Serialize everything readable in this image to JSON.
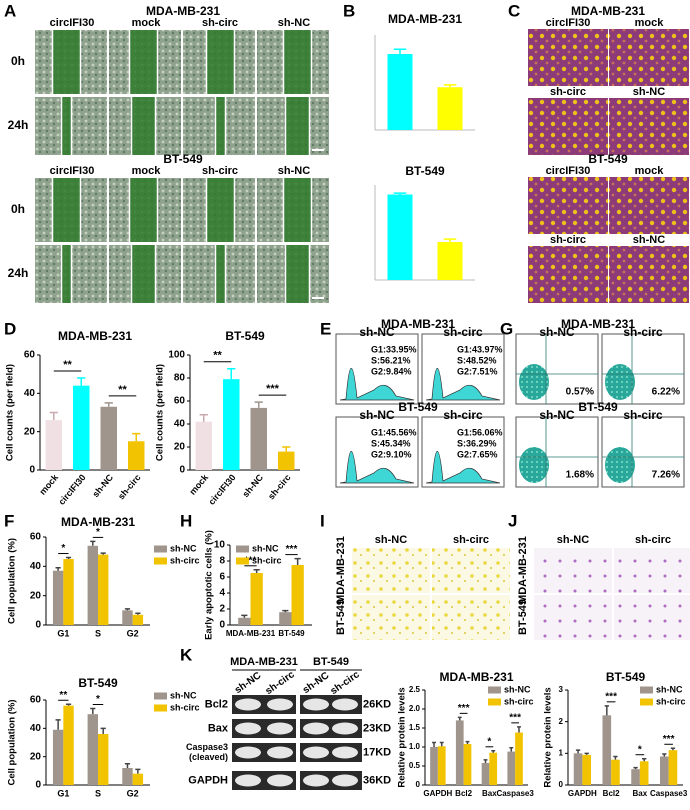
{
  "panel_labels": [
    "A",
    "B",
    "C",
    "D",
    "E",
    "G",
    "F",
    "H",
    "I",
    "J",
    "K"
  ],
  "panel_a": {
    "groups": [
      {
        "title": "MDA-MB-231",
        "columns": [
          "circIFI30",
          "mock",
          "sh-circ",
          "sh-NC"
        ],
        "rows": [
          "0h",
          "24h"
        ]
      },
      {
        "title": "BT-549",
        "columns": [
          "circIFI30",
          "mock",
          "sh-circ",
          "sh-NC"
        ],
        "rows": [
          "0h",
          "24h"
        ]
      }
    ]
  },
  "panel_c": {
    "groups": [
      {
        "title": "MDA-MB-231",
        "labels": [
          "circIFI30",
          "mock",
          "sh-circ",
          "sh-NC"
        ]
      },
      {
        "title": "BT-549",
        "labels": [
          "circIFI30",
          "mock",
          "sh-circ",
          "sh-NC"
        ]
      }
    ]
  },
  "panel_e": {
    "groups": [
      {
        "title": "MDA-MB-231",
        "plots": [
          {
            "label": "sh-NC",
            "stats": [
              "G1:33.95%",
              "S:56.21%",
              "G2:9.84%"
            ]
          },
          {
            "label": "sh-circ",
            "stats": [
              "G1:43.97%",
              "S:48.52%",
              "G2:7.51%"
            ]
          }
        ]
      },
      {
        "title": "BT-549",
        "plots": [
          {
            "label": "sh-NC",
            "stats": [
              "G1:45.56%",
              "S:45.34%",
              "G2:9.10%"
            ]
          },
          {
            "label": "sh-circ",
            "stats": [
              "G1:56.06%",
              "S:36.29%",
              "G2:7.65%"
            ]
          }
        ]
      }
    ]
  },
  "panel_g": {
    "groups": [
      {
        "title": "MDA-MB-231",
        "plots": [
          {
            "label": "sh-NC",
            "value": "0.57%"
          },
          {
            "label": "sh-circ",
            "value": "6.22%"
          }
        ]
      },
      {
        "title": "BT-549",
        "plots": [
          {
            "label": "sh-NC",
            "value": "1.68%"
          },
          {
            "label": "sh-circ",
            "value": "7.26%"
          }
        ]
      }
    ]
  },
  "panel_i": {
    "columns": [
      "sh-NC",
      "sh-circ"
    ],
    "rows": [
      "MDA-MB-231",
      "BT-549"
    ]
  },
  "panel_j": {
    "columns": [
      "sh-NC",
      "sh-circ"
    ],
    "rows": [
      "MDA-MB-231",
      "BT-549"
    ]
  },
  "panel_k_blot": {
    "cell_lines": [
      "MDA-MB-231",
      "BT-549"
    ],
    "lanes": [
      "sh-NC",
      "sh-circ",
      "sh-NC",
      "sh-circ"
    ],
    "bands": [
      {
        "name": [
          "Bcl2"
        ],
        "size": "26KD"
      },
      {
        "name": [
          "Bax"
        ],
        "size": "23KD"
      },
      {
        "name": [
          "Caspase3",
          "(cleaved)"
        ],
        "size": "17KD"
      },
      {
        "name": [
          "GAPDH"
        ],
        "size": "36KD"
      }
    ]
  },
  "chart_data": [
    {
      "type": "bar",
      "title": "MDA-MB-231",
      "values": [
        1.6,
        0.9
      ],
      "errors": [
        0.1,
        0.05
      ],
      "colors": [
        "#00ffff",
        "#ffff00"
      ],
      "ylim": [
        0,
        2
      ]
    },
    {
      "type": "bar",
      "title": "BT-549",
      "values": [
        1.8,
        0.8
      ],
      "errors": [
        0.03,
        0.06
      ],
      "colors": [
        "#00ffff",
        "#ffff00"
      ],
      "ylim": [
        0,
        2
      ]
    },
    {
      "type": "bar",
      "title": "MDA-MB-231",
      "ylabel": "Cell counts (per field)",
      "categories": [
        "mock",
        "circIFI30",
        "sh-NC",
        "sh-circ"
      ],
      "values": [
        26,
        44,
        33,
        15
      ],
      "errors": [
        4,
        4,
        2,
        4
      ],
      "colors": [
        "#f0e0e3",
        "#00ffff",
        "#a0958c",
        "#f2c300"
      ],
      "ylim": [
        0,
        60
      ],
      "yticks": [
        0,
        20,
        40,
        60
      ],
      "significance": [
        "**",
        "**"
      ]
    },
    {
      "type": "bar",
      "title": "BT-549",
      "ylabel": "Cell counts (per field)",
      "categories": [
        "mock",
        "circIFI30",
        "sh-NC",
        "sh-circ"
      ],
      "values": [
        42,
        79,
        54,
        16
      ],
      "errors": [
        6,
        9,
        5,
        4
      ],
      "colors": [
        "#f0e0e3",
        "#00ffff",
        "#a0958c",
        "#f2c300"
      ],
      "ylim": [
        0,
        100
      ],
      "yticks": [
        0,
        20,
        40,
        60,
        80,
        100
      ],
      "significance": [
        "**",
        "***"
      ]
    },
    {
      "type": "bar",
      "title": "MDA-MB-231",
      "ylabel": "Cell population (%)",
      "categories": [
        "G1",
        "S",
        "G2"
      ],
      "series": [
        {
          "name": "sh-NC",
          "color": "#a0958c",
          "values": [
            37,
            54,
            10
          ],
          "errors": [
            2,
            3,
            1
          ]
        },
        {
          "name": "sh-circ",
          "color": "#f2c300",
          "values": [
            45,
            48,
            7
          ],
          "errors": [
            1,
            1,
            1
          ]
        }
      ],
      "ylim": [
        0,
        60
      ],
      "yticks": [
        0,
        20,
        40,
        60
      ],
      "significance": [
        "*",
        "*",
        null
      ]
    },
    {
      "type": "bar",
      "title": "BT-549",
      "ylabel": "Cell population (%)",
      "categories": [
        "G1",
        "S",
        "G2"
      ],
      "series": [
        {
          "name": "sh-NC",
          "color": "#a0958c",
          "values": [
            39,
            50,
            12
          ],
          "errors": [
            7,
            4,
            3
          ]
        },
        {
          "name": "sh-circ",
          "color": "#f2c300",
          "values": [
            56,
            36,
            8
          ],
          "errors": [
            1,
            4,
            3
          ]
        }
      ],
      "ylim": [
        0,
        60
      ],
      "yticks": [
        0,
        20,
        40,
        60
      ],
      "significance": [
        "**",
        "*",
        null
      ]
    },
    {
      "type": "bar",
      "ylabel": "Early apoptotic cells (%)",
      "categories": [
        "MDA-MB-231",
        "BT-549"
      ],
      "series": [
        {
          "name": "sh-NC",
          "color": "#a0958c",
          "values": [
            0.9,
            1.6
          ],
          "errors": [
            0.3,
            0.2
          ]
        },
        {
          "name": "sh-circ",
          "color": "#f2c300",
          "values": [
            6.5,
            7.5
          ],
          "errors": [
            0.4,
            0.8
          ]
        }
      ],
      "ylim": [
        0,
        10
      ],
      "yticks": [
        0,
        2,
        4,
        6,
        8,
        10
      ],
      "significance": [
        "***",
        "***"
      ]
    },
    {
      "type": "bar",
      "title": "MDA-MB-231",
      "ylabel": "Relative protein levels",
      "categories": [
        "GAPDH",
        "Bcl2",
        "Bax",
        "Caspase3"
      ],
      "series": [
        {
          "name": "sh-NC",
          "color": "#a0958c",
          "values": [
            1.0,
            1.7,
            0.58,
            0.88
          ],
          "errors": [
            0.12,
            0.08,
            0.08,
            0.1
          ]
        },
        {
          "name": "sh-circ",
          "color": "#f2c300",
          "values": [
            1.02,
            1.08,
            0.85,
            1.38
          ],
          "errors": [
            0.1,
            0.06,
            0.05,
            0.15
          ]
        }
      ],
      "ylim": [
        0,
        2.5
      ],
      "yticks": [
        0,
        0.5,
        {
          "value": 1,
          "label": "1.0"
        },
        1.5,
        {
          "value": 2,
          "label": "2.0"
        },
        2.5
      ],
      "significance": [
        null,
        "***",
        "*",
        "***"
      ]
    },
    {
      "type": "bar",
      "title": "BT-549",
      "ylabel": "Relative protein levels",
      "categories": [
        "GAPDH",
        "Bcl2",
        "Bax",
        "Caspase3"
      ],
      "series": [
        {
          "name": "sh-NC",
          "color": "#a0958c",
          "values": [
            1.0,
            2.2,
            0.5,
            0.9
          ],
          "errors": [
            0.1,
            0.3,
            0.05,
            0.08
          ]
        },
        {
          "name": "sh-circ",
          "color": "#f2c300",
          "values": [
            0.95,
            0.8,
            0.75,
            1.1
          ],
          "errors": [
            0.05,
            0.1,
            0.08,
            0.06
          ]
        }
      ],
      "ylim": [
        0,
        3
      ],
      "yticks": [
        0,
        1,
        2,
        3
      ],
      "significance": [
        null,
        "***",
        "*",
        "***"
      ]
    }
  ]
}
